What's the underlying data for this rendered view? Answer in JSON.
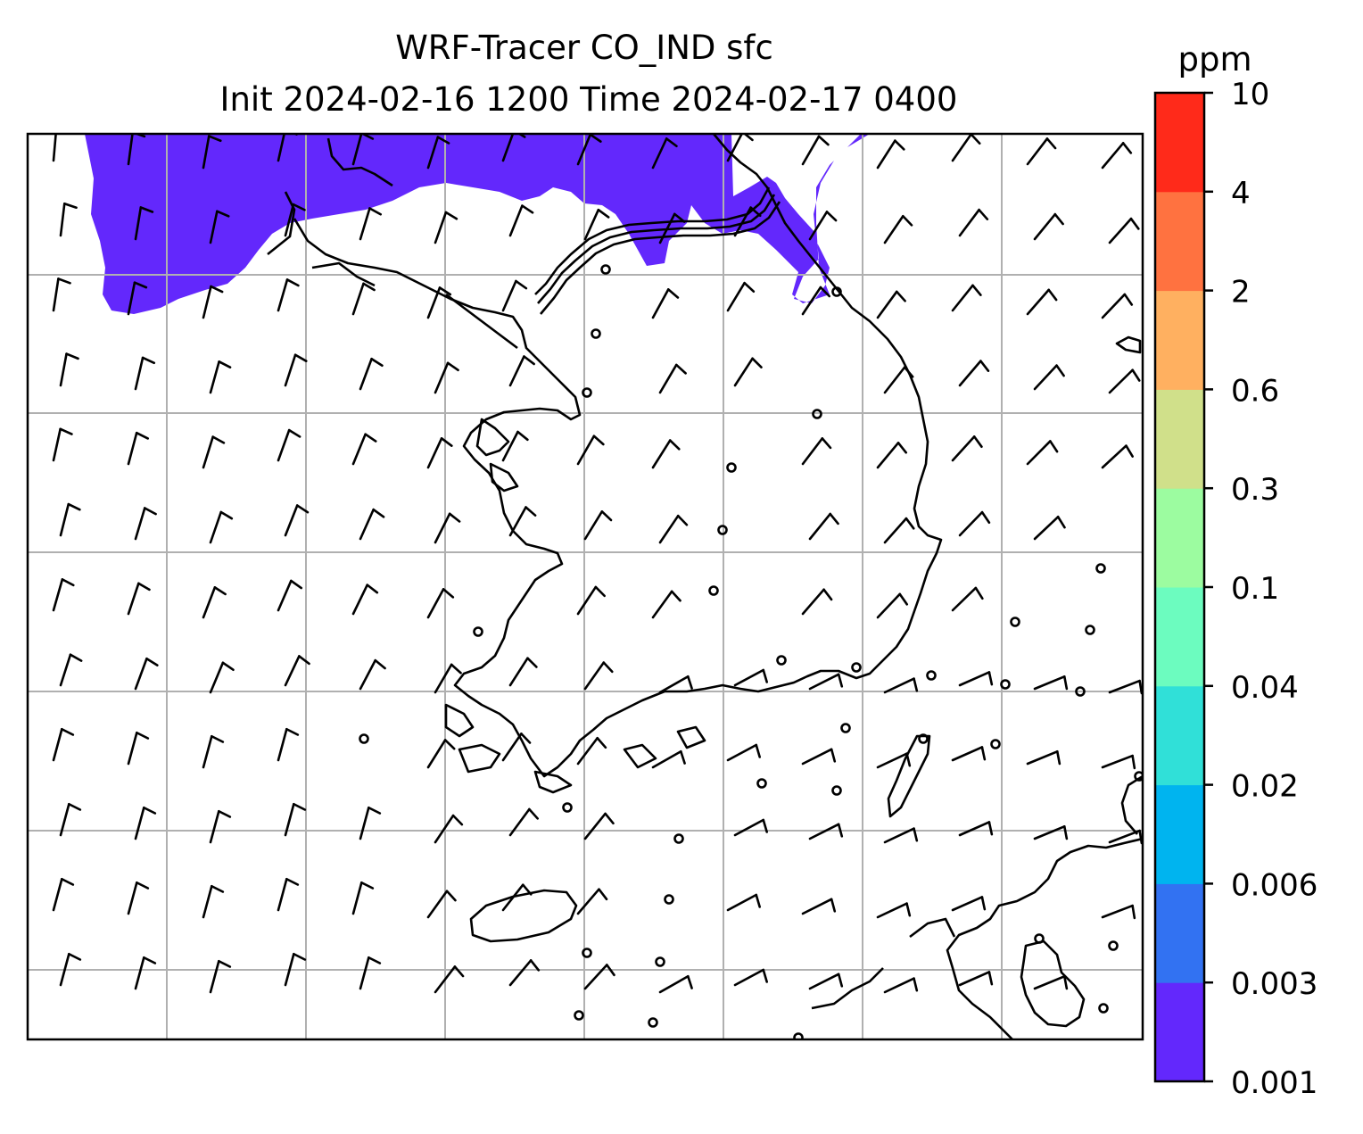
{
  "title": {
    "line1": "WRF-Tracer CO_IND sfc",
    "line2": "Init 2024-02-16 1200 Time 2024-02-17 0400"
  },
  "colorbar": {
    "unit": "ppm",
    "levels": [
      "0.001",
      "0.003",
      "0.006",
      "0.02",
      "0.04",
      "0.1",
      "0.3",
      "0.6",
      "2",
      "4",
      "10"
    ],
    "colors": [
      "#6328fc",
      "#3272f2",
      "#00b4ef",
      "#30e0d8",
      "#6cfcbf",
      "#9cfca0",
      "#d0e08a",
      "#ffb060",
      "#ff7240",
      "#ff2a1a"
    ]
  },
  "map": {
    "tracer_fill_color": "#6328fc",
    "gridlines": true,
    "wind_barbs": true,
    "coastlines": true
  }
}
